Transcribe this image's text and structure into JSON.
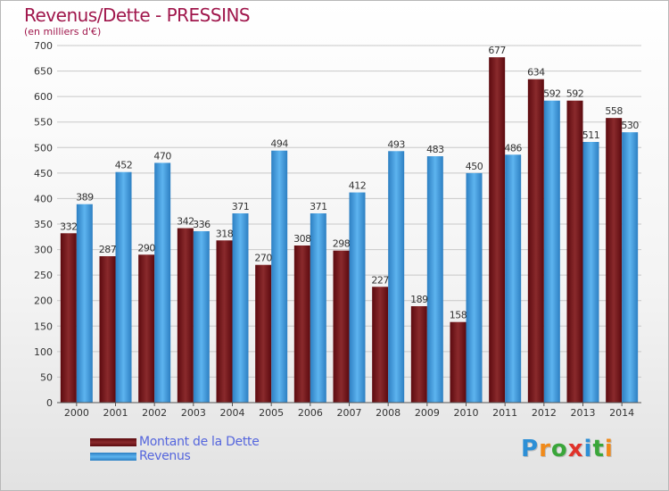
{
  "title": "Revenus/Dette - PRESSINS",
  "subtitle": "(en milliers d'€)",
  "colors": {
    "dette": "#7a1a1e",
    "revenus": "#4aa6e6",
    "title": "#a0174c"
  },
  "legend": {
    "dette_label": "Montant de la Dette",
    "revenus_label": "Revenus"
  },
  "logo": "Proxiti",
  "chart_data": {
    "type": "bar",
    "title": "Revenus/Dette - PRESSINS",
    "ylabel": "(en milliers d'€)",
    "xlabel": "",
    "ylim": [
      0,
      700
    ],
    "ytick_step": 50,
    "grid": true,
    "categories": [
      "2000",
      "2001",
      "2002",
      "2003",
      "2004",
      "2005",
      "2006",
      "2007",
      "2008",
      "2009",
      "2010",
      "2011",
      "2012",
      "2013",
      "2014"
    ],
    "series": [
      {
        "name": "Montant de la Dette",
        "values": [
          332,
          287,
          290,
          342,
          318,
          270,
          308,
          298,
          227,
          189,
          158,
          677,
          634,
          592,
          558
        ]
      },
      {
        "name": "Revenus",
        "values": [
          389,
          452,
          470,
          336,
          371,
          494,
          371,
          412,
          493,
          483,
          450,
          486,
          592,
          511,
          530
        ]
      }
    ],
    "legend_position": "bottom-left"
  }
}
